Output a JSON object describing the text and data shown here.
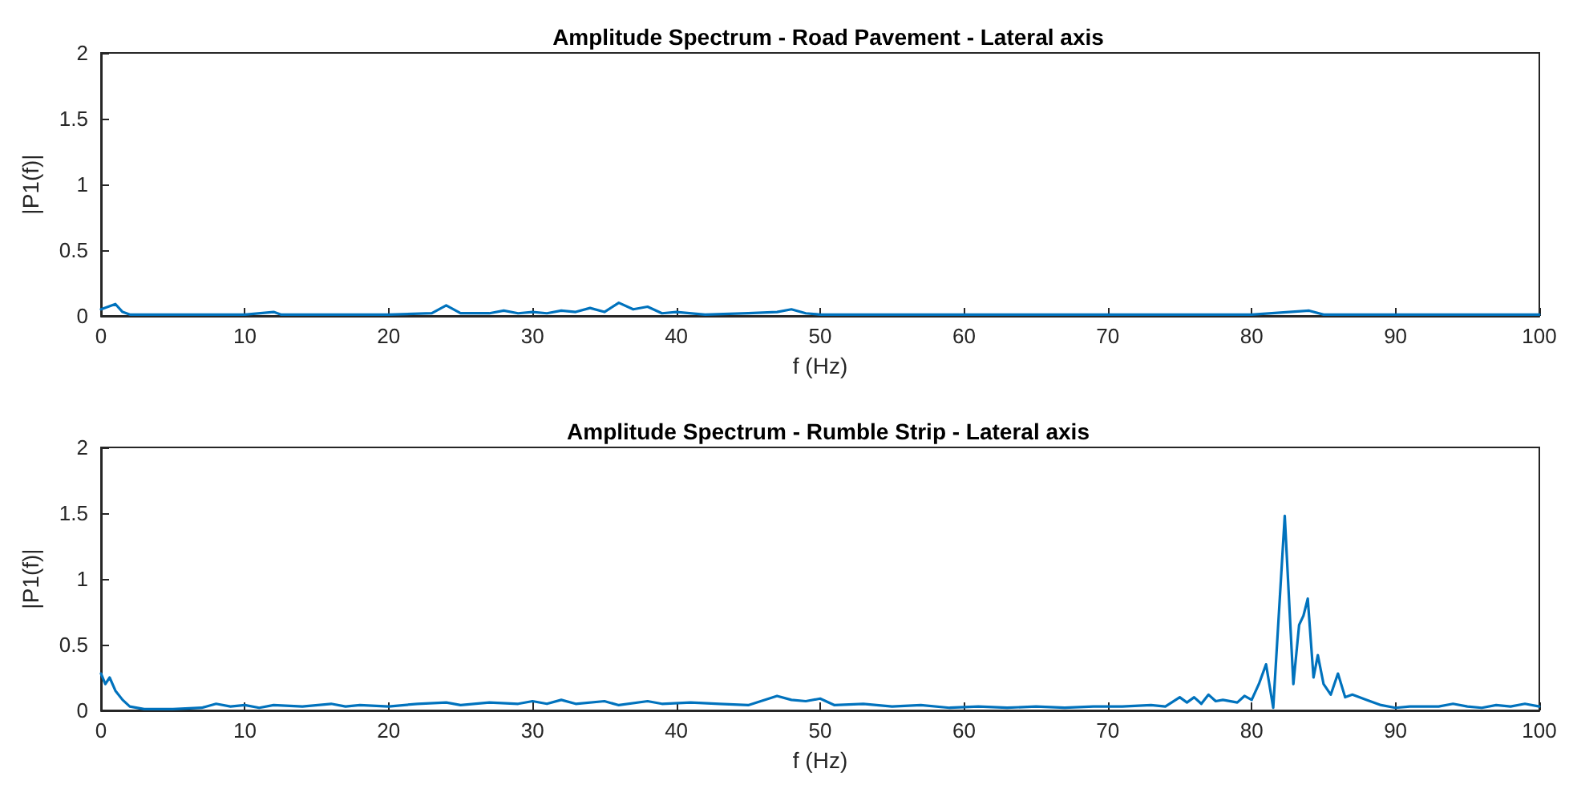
{
  "chart_data": [
    {
      "type": "line",
      "title": "Amplitude Spectrum - Road Pavement - Lateral axis",
      "xlabel": "f (Hz)",
      "ylabel": "|P1(f)|",
      "xlim": [
        0,
        100
      ],
      "xticks": [
        0,
        10,
        20,
        30,
        40,
        50,
        60,
        70,
        80,
        90,
        100
      ],
      "ylim": [
        0,
        2
      ],
      "yticks": [
        0,
        0.5,
        1,
        1.5,
        2
      ],
      "grid": false,
      "marker": "none",
      "line_style": "solid",
      "series": [
        {
          "color": "#0072bd",
          "x": [
            0,
            0.5,
            1,
            1.5,
            2,
            5,
            10,
            12,
            12.5,
            15,
            20,
            23,
            24,
            25,
            27,
            28,
            29,
            30,
            31,
            32,
            33,
            34,
            35,
            36,
            37,
            38,
            39,
            40,
            42,
            45,
            47,
            48,
            49,
            50,
            55,
            60,
            70,
            72,
            80,
            84,
            85,
            90,
            96,
            100
          ],
          "values": [
            0.05,
            0.07,
            0.09,
            0.03,
            0.01,
            0.01,
            0.01,
            0.03,
            0.01,
            0.01,
            0.01,
            0.02,
            0.08,
            0.02,
            0.02,
            0.04,
            0.02,
            0.03,
            0.02,
            0.04,
            0.03,
            0.06,
            0.03,
            0.1,
            0.05,
            0.07,
            0.02,
            0.03,
            0.01,
            0.02,
            0.03,
            0.05,
            0.02,
            0.01,
            0.01,
            0.01,
            0.01,
            0.01,
            0.01,
            0.04,
            0.01,
            0.01,
            0.01,
            0.01
          ]
        }
      ]
    },
    {
      "type": "line",
      "title": "Amplitude Spectrum - Rumble Strip - Lateral axis",
      "xlabel": "f (Hz)",
      "ylabel": "|P1(f)|",
      "xlim": [
        0,
        100
      ],
      "xticks": [
        0,
        10,
        20,
        30,
        40,
        50,
        60,
        70,
        80,
        90,
        100
      ],
      "ylim": [
        0,
        2
      ],
      "yticks": [
        0,
        0.5,
        1,
        1.5,
        2
      ],
      "grid": false,
      "marker": "none",
      "line_style": "solid",
      "series": [
        {
          "color": "#0072bd",
          "x": [
            0,
            0.3,
            0.6,
            1,
            1.5,
            2,
            3,
            5,
            7,
            8,
            9,
            10,
            11,
            12,
            14,
            16,
            17,
            18,
            20,
            22,
            24,
            25,
            27,
            29,
            30,
            31,
            32,
            33,
            35,
            36,
            38,
            39,
            41,
            43,
            45,
            47,
            48,
            49,
            50,
            51,
            53,
            55,
            57,
            59,
            61,
            63,
            65,
            67,
            69,
            71,
            73,
            74,
            75,
            75.5,
            76,
            76.5,
            77,
            77.5,
            78,
            79,
            79.5,
            80,
            80.5,
            81,
            81.5,
            82.3,
            82.9,
            83.3,
            83.6,
            83.9,
            84.3,
            84.6,
            85,
            85.5,
            86,
            86.5,
            87,
            88,
            89,
            90,
            91,
            93,
            94,
            95,
            96,
            97,
            98,
            99,
            100
          ],
          "values": [
            0.28,
            0.2,
            0.25,
            0.15,
            0.08,
            0.03,
            0.01,
            0.01,
            0.02,
            0.05,
            0.03,
            0.04,
            0.02,
            0.04,
            0.03,
            0.05,
            0.03,
            0.04,
            0.03,
            0.05,
            0.06,
            0.04,
            0.06,
            0.05,
            0.07,
            0.05,
            0.08,
            0.05,
            0.07,
            0.04,
            0.07,
            0.05,
            0.06,
            0.05,
            0.04,
            0.11,
            0.08,
            0.07,
            0.09,
            0.04,
            0.05,
            0.03,
            0.04,
            0.02,
            0.03,
            0.02,
            0.03,
            0.02,
            0.03,
            0.03,
            0.04,
            0.03,
            0.1,
            0.06,
            0.1,
            0.05,
            0.12,
            0.07,
            0.08,
            0.06,
            0.11,
            0.08,
            0.2,
            0.35,
            0.02,
            1.48,
            0.2,
            0.65,
            0.72,
            0.85,
            0.25,
            0.42,
            0.2,
            0.12,
            0.28,
            0.1,
            0.12,
            0.08,
            0.04,
            0.02,
            0.03,
            0.03,
            0.05,
            0.03,
            0.02,
            0.04,
            0.03,
            0.05,
            0.03
          ]
        }
      ]
    }
  ]
}
